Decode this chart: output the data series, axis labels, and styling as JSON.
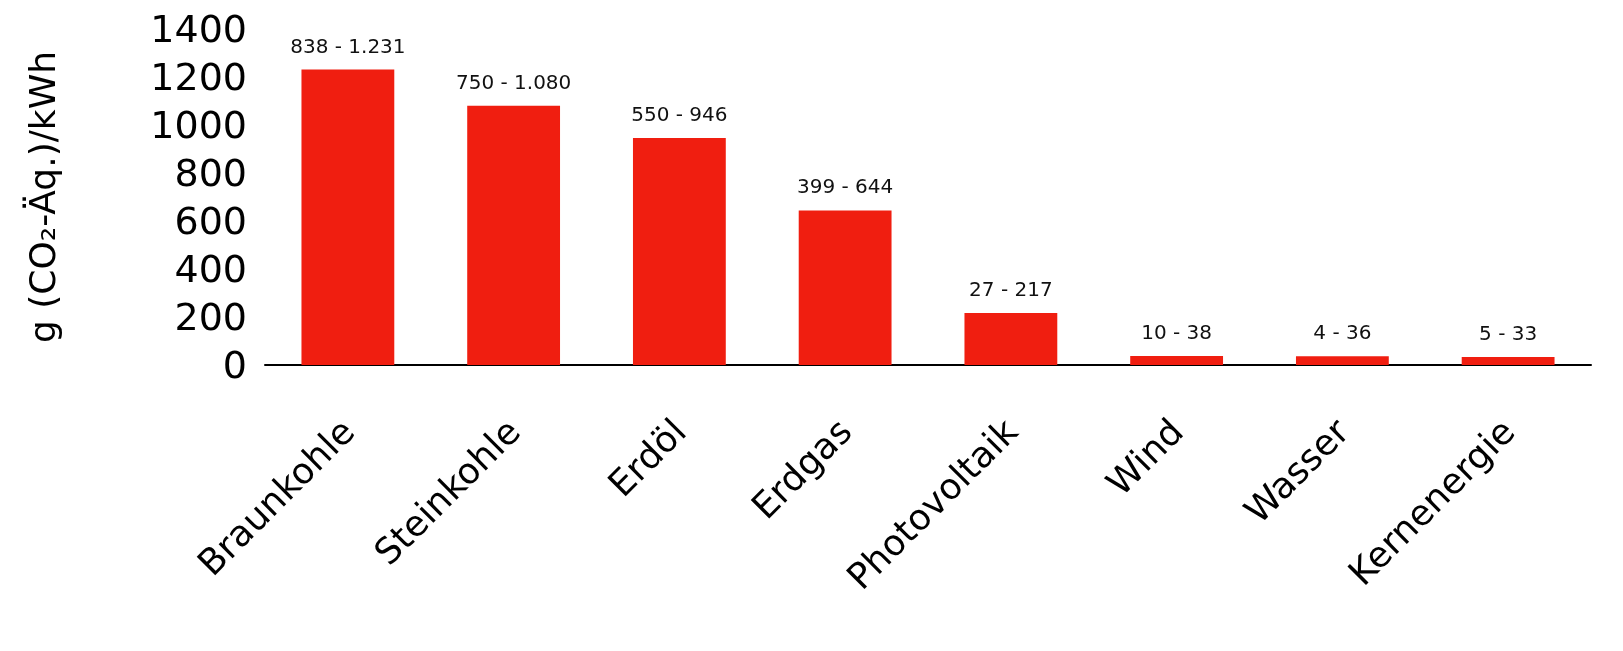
{
  "chart_data": {
    "type": "bar",
    "ylabel": "g (CO₂-Äq.)/kWh",
    "categories": [
      "Braunkohle",
      "Steinkohle",
      "Erdöl",
      "Erdgas",
      "Photovoltaik",
      "Wind",
      "Wasser",
      "Kernenergie"
    ],
    "values": [
      1231,
      1080,
      946,
      644,
      217,
      38,
      36,
      33
    ],
    "annotations": [
      {
        "text": "838 - 1.231",
        "x": "Braunkohle",
        "y": 1231
      },
      {
        "text": "750 - 1.080",
        "x": "Steinkohle",
        "y": 1080
      },
      {
        "text": "550 - 946",
        "x": "Erdöl",
        "y": 946
      },
      {
        "text": "399 - 644",
        "x": "Erdgas",
        "y": 644
      },
      {
        "text": "27 - 217",
        "x": "Photovoltaik",
        "y": 217
      },
      {
        "text": "10 - 38",
        "x": "Wind",
        "y": 38
      },
      {
        "text": "4 - 36",
        "x": "Wasser",
        "y": 36
      },
      {
        "text": "5 - 33",
        "x": "Kernenergie",
        "y": 33
      }
    ],
    "color": "#f01e10",
    "ylim": [
      0,
      1400
    ],
    "yticks": [
      0,
      200,
      400,
      600,
      800,
      1000,
      1200,
      1400
    ],
    "grid": false
  }
}
